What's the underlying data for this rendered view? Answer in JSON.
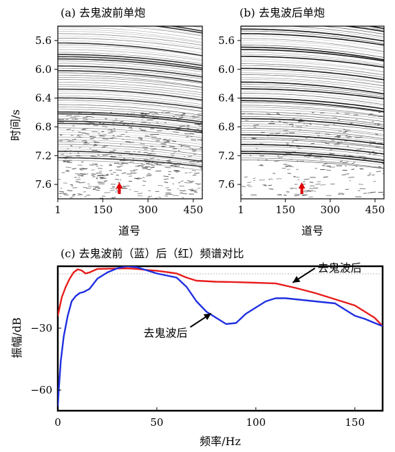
{
  "figure": {
    "panel_a_title": "(a) 去鬼波前单炮",
    "panel_b_title": "(b) 去鬼波后单炮",
    "panel_c_title": "(c) 去鬼波前（蓝）后（红）频谱对比",
    "colors": {
      "before": "#1f2fe0",
      "after": "#e81c1c",
      "arrow_marker": "#e00000"
    }
  },
  "chart_data": [
    {
      "type": "heatmap",
      "panel": "a",
      "title": "(a) 去鬼波前单炮",
      "xlabel": "道号",
      "ylabel": "时间/s",
      "xticks": [
        "1",
        "150",
        "300",
        "450"
      ],
      "yticks": [
        "5.6",
        "6.0",
        "6.4",
        "6.8",
        "7.2",
        "7.6"
      ],
      "xlim": [
        1,
        480
      ],
      "ylim": [
        5.4,
        7.8
      ],
      "y_inverted": true,
      "marker": {
        "type": "arrow",
        "x": 205,
        "color": "#e00000"
      }
    },
    {
      "type": "heatmap",
      "panel": "b",
      "title": "(b) 去鬼波后单炮",
      "xlabel": "道号",
      "ylabel": "",
      "xticks": [
        "1",
        "150",
        "300",
        "450"
      ],
      "yticks": [
        "5.6",
        "6.0",
        "6.4",
        "6.8",
        "7.2",
        "7.6"
      ],
      "xlim": [
        1,
        480
      ],
      "ylim": [
        5.4,
        7.8
      ],
      "y_inverted": true,
      "marker": {
        "type": "arrow",
        "x": 205,
        "color": "#e00000"
      }
    },
    {
      "type": "line",
      "panel": "c",
      "title": "(c) 去鬼波前（蓝）后（红）频谱对比",
      "xlabel": "频率/Hz",
      "ylabel": "振幅/dB",
      "xlim": [
        0,
        164
      ],
      "ylim": [
        -70,
        0
      ],
      "xticks": [
        "0",
        "50",
        "100",
        "150"
      ],
      "yticks": [
        "-30",
        "-60"
      ],
      "grid": false,
      "series": [
        {
          "color": "#e81c1c",
          "x": [
            0,
            2,
            4,
            6,
            8,
            10,
            12,
            14,
            16,
            20,
            25,
            30,
            35,
            40,
            45,
            50,
            55,
            60,
            65,
            70,
            80,
            90,
            100,
            110,
            120,
            130,
            140,
            150,
            160,
            164
          ],
          "y": [
            -24,
            -15,
            -10,
            -6,
            -3,
            -1.5,
            -2,
            -3.5,
            -3,
            -1.3,
            -1.2,
            -1.1,
            -1,
            -1.3,
            -1.8,
            -2.2,
            -2.8,
            -3.5,
            -5.5,
            -7,
            -7.5,
            -7.7,
            -8,
            -8.3,
            -10.5,
            -13,
            -16,
            -19,
            -25,
            -29
          ]
        },
        {
          "color": "#1f2fe0",
          "x": [
            0,
            0.5,
            1.5,
            3,
            5,
            7,
            9,
            11,
            13,
            16,
            20,
            25,
            30,
            35,
            40,
            45,
            50,
            55,
            60,
            65,
            70,
            75,
            80,
            85,
            90,
            95,
            100,
            105,
            110,
            115,
            120,
            125,
            130,
            135,
            140,
            145,
            150,
            155,
            160,
            164
          ],
          "y": [
            -68,
            -60,
            -46,
            -34,
            -24,
            -17,
            -14.5,
            -13,
            -12.5,
            -11,
            -6,
            -3,
            -1,
            0,
            -0.5,
            -2,
            -3.5,
            -4.5,
            -5.5,
            -10,
            -17,
            -22,
            -25,
            -28,
            -27.5,
            -23,
            -20,
            -17,
            -15.5,
            -15.5,
            -16,
            -16.5,
            -17,
            -17.5,
            -18,
            -21,
            -24,
            -25.5,
            -27.5,
            -29
          ]
        }
      ],
      "annotations": [
        {
          "text": "去鬼波后",
          "target_x": 118,
          "target_y": -8.3
        },
        {
          "text": "去鬼波后",
          "target_x": 78,
          "target_y": -22.5
        }
      ]
    }
  ]
}
